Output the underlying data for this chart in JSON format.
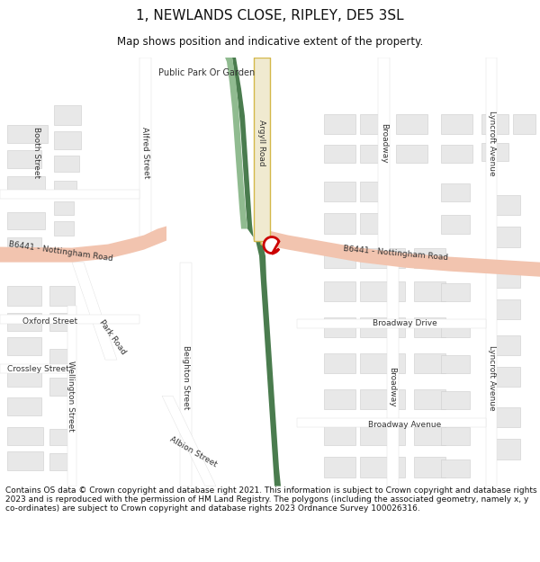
{
  "title": "1, NEWLANDS CLOSE, RIPLEY, DE5 3SL",
  "subtitle": "Map shows position and indicative extent of the property.",
  "footer": "Contains OS data © Crown copyright and database right 2021. This information is subject to Crown copyright and database rights 2023 and is reproduced with the permission of HM Land Registry. The polygons (including the associated geometry, namely x, y co-ordinates) are subject to Crown copyright and database rights 2023 Ordnance Survey 100026316.",
  "bg_color": "#ffffff",
  "map_bg": "#ffffff",
  "road_color_main": "#f2c4af",
  "building_color": "#e8e8e8",
  "building_outline": "#cccccc",
  "property_marker": "#cc0000",
  "road_yellow": "#f0ead0",
  "road_yellow_line": "#d4b84a",
  "park_dark": "#4a7c4e",
  "park_light": "#90bb90",
  "title_fontsize": 11,
  "subtitle_fontsize": 8.5,
  "footer_fontsize": 6.5,
  "label_fontsize": 6.5
}
